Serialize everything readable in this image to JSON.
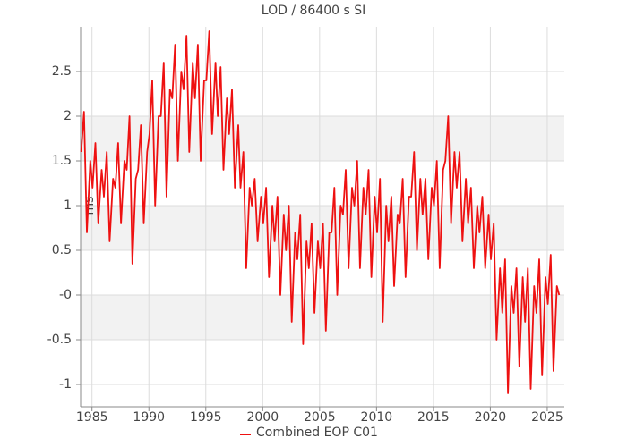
{
  "chart_data": {
    "type": "line",
    "title": "LOD / 86400 s SI",
    "ylabel": "ms",
    "x": [
      1984.05,
      1984.3,
      1984.55,
      1984.85,
      1985.05,
      1985.3,
      1985.55,
      1985.85,
      1986.05,
      1986.3,
      1986.55,
      1986.85,
      1987.05,
      1987.3,
      1987.55,
      1987.85,
      1988.05,
      1988.3,
      1988.55,
      1988.85,
      1989.05,
      1989.3,
      1989.55,
      1989.85,
      1990.05,
      1990.3,
      1990.55,
      1990.85,
      1991.05,
      1991.3,
      1991.55,
      1991.85,
      1992.05,
      1992.3,
      1992.55,
      1992.85,
      1993.05,
      1993.3,
      1993.55,
      1993.85,
      1994.05,
      1994.3,
      1994.55,
      1994.85,
      1995.05,
      1995.3,
      1995.55,
      1995.85,
      1996.05,
      1996.3,
      1996.55,
      1996.85,
      1997.05,
      1997.3,
      1997.55,
      1997.85,
      1998.05,
      1998.3,
      1998.55,
      1998.85,
      1999.05,
      1999.3,
      1999.55,
      1999.85,
      2000.05,
      2000.3,
      2000.55,
      2000.85,
      2001.05,
      2001.3,
      2001.55,
      2001.85,
      2002.05,
      2002.3,
      2002.55,
      2002.85,
      2003.05,
      2003.3,
      2003.55,
      2003.85,
      2004.05,
      2004.3,
      2004.55,
      2004.85,
      2005.05,
      2005.3,
      2005.55,
      2005.85,
      2006.05,
      2006.3,
      2006.55,
      2006.85,
      2007.05,
      2007.3,
      2007.55,
      2007.85,
      2008.05,
      2008.3,
      2008.55,
      2008.85,
      2009.05,
      2009.3,
      2009.55,
      2009.85,
      2010.05,
      2010.3,
      2010.55,
      2010.85,
      2011.05,
      2011.3,
      2011.55,
      2011.85,
      2012.05,
      2012.3,
      2012.55,
      2012.85,
      2013.05,
      2013.3,
      2013.55,
      2013.85,
      2014.05,
      2014.3,
      2014.55,
      2014.85,
      2015.05,
      2015.3,
      2015.55,
      2015.85,
      2016.05,
      2016.3,
      2016.55,
      2016.85,
      2017.05,
      2017.3,
      2017.55,
      2017.85,
      2018.05,
      2018.3,
      2018.55,
      2018.85,
      2019.05,
      2019.3,
      2019.55,
      2019.85,
      2020.05,
      2020.3,
      2020.55,
      2020.85,
      2021.05,
      2021.3,
      2021.55,
      2021.85,
      2022.05,
      2022.3,
      2022.55,
      2022.85,
      2023.05,
      2023.3,
      2023.55,
      2023.85,
      2024.05,
      2024.3,
      2024.55,
      2024.85,
      2025.05,
      2025.3,
      2025.55,
      2025.85,
      2026.05
    ],
    "series": [
      {
        "name": "Combined EOP C01",
        "color": "#ee1111",
        "values": [
          1.6,
          2.05,
          0.7,
          1.5,
          1.2,
          1.7,
          0.8,
          1.4,
          1.1,
          1.6,
          0.6,
          1.3,
          1.2,
          1.7,
          0.8,
          1.5,
          1.4,
          2.0,
          0.35,
          1.3,
          1.4,
          1.9,
          0.8,
          1.6,
          1.8,
          2.4,
          1.0,
          2.0,
          2.0,
          2.6,
          1.1,
          2.3,
          2.2,
          2.8,
          1.5,
          2.5,
          2.3,
          2.9,
          1.6,
          2.6,
          2.2,
          2.8,
          1.5,
          2.4,
          2.4,
          2.95,
          1.8,
          2.6,
          2.0,
          2.55,
          1.4,
          2.2,
          1.8,
          2.3,
          1.2,
          1.9,
          1.2,
          1.6,
          0.3,
          1.2,
          1.0,
          1.3,
          0.6,
          1.1,
          0.8,
          1.2,
          0.2,
          1.0,
          0.6,
          1.1,
          0.0,
          0.9,
          0.5,
          1.0,
          -0.3,
          0.7,
          0.4,
          0.9,
          -0.55,
          0.6,
          0.3,
          0.8,
          -0.2,
          0.6,
          0.3,
          0.8,
          -0.4,
          0.7,
          0.7,
          1.2,
          0.0,
          1.0,
          0.9,
          1.4,
          0.3,
          1.2,
          1.0,
          1.5,
          0.3,
          1.2,
          0.9,
          1.4,
          0.2,
          1.1,
          0.7,
          1.3,
          -0.3,
          1.0,
          0.6,
          1.1,
          0.1,
          0.9,
          0.8,
          1.3,
          0.2,
          1.1,
          1.1,
          1.6,
          0.5,
          1.3,
          0.9,
          1.3,
          0.4,
          1.2,
          1.0,
          1.5,
          0.3,
          1.4,
          1.5,
          2.0,
          0.8,
          1.6,
          1.2,
          1.6,
          0.6,
          1.3,
          0.8,
          1.2,
          0.3,
          1.0,
          0.7,
          1.1,
          0.3,
          0.9,
          0.4,
          0.8,
          -0.5,
          0.3,
          -0.2,
          0.4,
          -1.1,
          0.1,
          -0.2,
          0.3,
          -0.8,
          0.2,
          -0.3,
          0.3,
          -1.05,
          0.1,
          -0.2,
          0.4,
          -0.9,
          0.2,
          -0.1,
          0.45,
          -0.85,
          0.1,
          0.0
        ]
      }
    ],
    "xlim": [
      1984,
      2026.5
    ],
    "xticks": [
      1985,
      1990,
      1995,
      2000,
      2005,
      2010,
      2015,
      2020,
      2025
    ],
    "ylim": [
      -1.25,
      3.0
    ],
    "yticks": [
      -1,
      -0.5,
      {
        "value": 0,
        "label": "-0"
      },
      0.5,
      1,
      1.5,
      2,
      2.5
    ],
    "grid": true,
    "legend": "bottom"
  }
}
